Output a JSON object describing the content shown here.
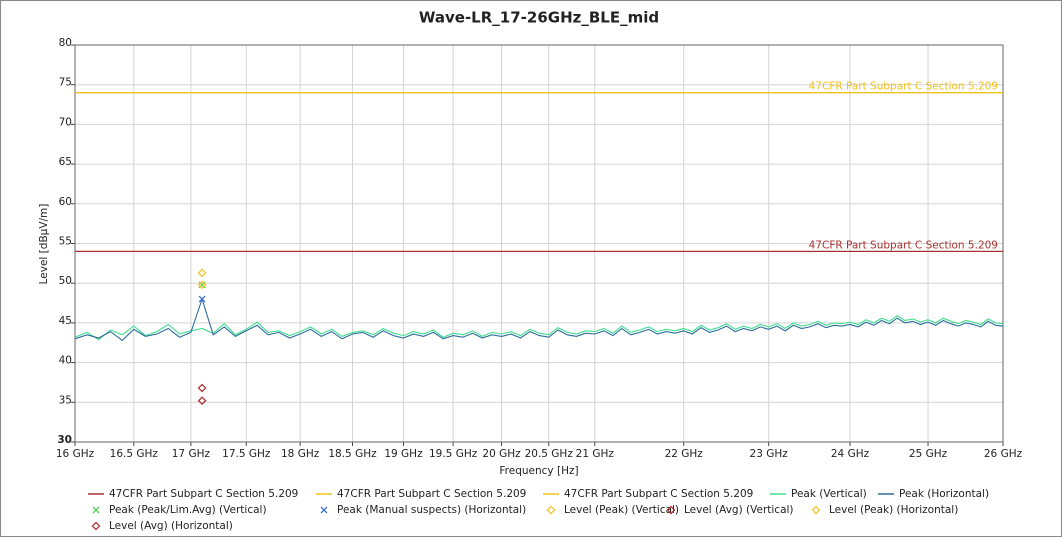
{
  "chart_data": {
    "type": "line",
    "title": "Wave-LR_17-26GHz_BLE_mid",
    "xlabel": "Frequency [Hz]",
    "ylabel": "Level [dBµV/m]",
    "xscale": "log",
    "xlim": [
      16,
      26
    ],
    "xticks": [
      {
        "value": 16,
        "label": "16 GHz"
      },
      {
        "value": 16.5,
        "label": "16.5 GHz"
      },
      {
        "value": 17,
        "label": "17 GHz"
      },
      {
        "value": 17.5,
        "label": "17.5 GHz"
      },
      {
        "value": 18,
        "label": "18 GHz"
      },
      {
        "value": 18.5,
        "label": "18.5 GHz"
      },
      {
        "value": 19,
        "label": "19 GHz"
      },
      {
        "value": 19.5,
        "label": "19.5 GHz"
      },
      {
        "value": 20,
        "label": "20 GHz"
      },
      {
        "value": 20.5,
        "label": "20.5 GHz"
      },
      {
        "value": 21,
        "label": "21 GHz"
      },
      {
        "value": 22,
        "label": "22 GHz"
      },
      {
        "value": 23,
        "label": "23 GHz"
      },
      {
        "value": 24,
        "label": "24 GHz"
      },
      {
        "value": 25,
        "label": "25 GHz"
      },
      {
        "value": 26,
        "label": "26 GHz"
      }
    ],
    "ylim": [
      30,
      80
    ],
    "yticks": [
      30,
      35,
      40,
      45,
      50,
      55,
      60,
      65,
      70,
      75,
      80
    ],
    "grid": true,
    "x": [
      16.0,
      16.1,
      16.2,
      16.3,
      16.4,
      16.5,
      16.6,
      16.7,
      16.8,
      16.9,
      17.0,
      17.1,
      17.2,
      17.3,
      17.4,
      17.5,
      17.6,
      17.7,
      17.8,
      17.9,
      18.0,
      18.1,
      18.2,
      18.3,
      18.4,
      18.5,
      18.6,
      18.7,
      18.8,
      18.9,
      19.0,
      19.1,
      19.2,
      19.3,
      19.4,
      19.5,
      19.6,
      19.7,
      19.8,
      19.9,
      20.0,
      20.1,
      20.2,
      20.3,
      20.4,
      20.5,
      20.6,
      20.7,
      20.8,
      20.9,
      21.0,
      21.1,
      21.2,
      21.3,
      21.4,
      21.5,
      21.6,
      21.7,
      21.8,
      21.9,
      22.0,
      22.1,
      22.2,
      22.3,
      22.4,
      22.5,
      22.6,
      22.7,
      22.8,
      22.9,
      23.0,
      23.1,
      23.2,
      23.3,
      23.4,
      23.5,
      23.6,
      23.7,
      23.8,
      23.9,
      24.0,
      24.1,
      24.2,
      24.3,
      24.4,
      24.5,
      24.6,
      24.7,
      24.8,
      24.9,
      25.0,
      25.1,
      25.2,
      25.3,
      25.4,
      25.5,
      25.6,
      25.7,
      25.8,
      25.9,
      26.0
    ],
    "series": [
      {
        "name": "47CFR Part Subpart C Section 5.209",
        "color": "#a83232",
        "x": [
          16,
          26
        ],
        "values": [
          54,
          54
        ],
        "line_label": true
      },
      {
        "name": "47CFR Part Subpart C Section 5.209",
        "color": "#f2c21b",
        "x": [
          16,
          26
        ],
        "values": [
          74,
          74
        ],
        "line_label": true
      },
      {
        "name": "47CFR Part Subpart C Section 5.209",
        "color": "#f2c21b",
        "x": [
          16,
          26
        ],
        "values": [
          74,
          74
        ]
      },
      {
        "name": "Peak (Vertical)",
        "color": "#3ee08f",
        "values": [
          43.2,
          43.8,
          42.9,
          44.1,
          43.5,
          44.6,
          43.4,
          43.9,
          44.8,
          43.6,
          44.0,
          44.3,
          43.7,
          44.9,
          43.5,
          44.2,
          45.1,
          43.8,
          44.0,
          43.4,
          43.9,
          44.5,
          43.6,
          44.2,
          43.3,
          43.8,
          44.0,
          43.5,
          44.3,
          43.7,
          43.4,
          43.9,
          43.6,
          44.1,
          43.2,
          43.7,
          43.5,
          44.0,
          43.3,
          43.8,
          43.6,
          43.9,
          43.4,
          44.2,
          43.7,
          43.5,
          44.4,
          43.8,
          43.6,
          44.0,
          43.9,
          44.3,
          43.7,
          44.6,
          43.8,
          44.1,
          44.5,
          43.9,
          44.2,
          44.0,
          44.3,
          43.9,
          44.7,
          44.1,
          44.4,
          44.9,
          44.2,
          44.6,
          44.3,
          44.8,
          44.5,
          44.9,
          44.3,
          45.0,
          44.6,
          44.8,
          45.2,
          44.7,
          45.0,
          44.9,
          45.1,
          44.8,
          45.4,
          45.0,
          45.6,
          45.2,
          45.9,
          45.3,
          45.5,
          45.1,
          45.4,
          45.0,
          45.6,
          45.2,
          44.9,
          45.3,
          45.1,
          44.8,
          45.5,
          45.0,
          44.9
        ]
      },
      {
        "name": "Peak (Horizontal)",
        "color": "#2f6d9c",
        "values": [
          43.0,
          43.5,
          43.1,
          43.9,
          42.8,
          44.2,
          43.3,
          43.6,
          44.3,
          43.2,
          43.8,
          48.0,
          43.5,
          44.5,
          43.3,
          44.0,
          44.7,
          43.5,
          43.8,
          43.1,
          43.6,
          44.2,
          43.3,
          43.9,
          43.0,
          43.6,
          43.8,
          43.2,
          44.0,
          43.4,
          43.1,
          43.6,
          43.3,
          43.8,
          43.0,
          43.4,
          43.2,
          43.7,
          43.1,
          43.5,
          43.3,
          43.6,
          43.1,
          43.9,
          43.4,
          43.2,
          44.1,
          43.5,
          43.3,
          43.7,
          43.6,
          44.0,
          43.4,
          44.3,
          43.5,
          43.8,
          44.2,
          43.6,
          43.9,
          43.7,
          44.0,
          43.6,
          44.4,
          43.8,
          44.1,
          44.6,
          43.9,
          44.3,
          44.0,
          44.5,
          44.2,
          44.6,
          44.0,
          44.7,
          44.3,
          44.5,
          44.9,
          44.4,
          44.7,
          44.6,
          44.8,
          44.5,
          45.1,
          44.7,
          45.3,
          44.9,
          45.6,
          45.0,
          45.2,
          44.8,
          45.1,
          44.7,
          45.3,
          44.9,
          44.6,
          45.0,
          44.8,
          44.5,
          45.2,
          44.7,
          44.6
        ]
      },
      {
        "name": "Peak (Peak/Lim.Avg) (Vertical)",
        "color": "#4ed34e",
        "marker": "x",
        "x": [
          17.1
        ],
        "values": [
          49.8
        ]
      },
      {
        "name": "Peak (Manual suspects) (Horizontal)",
        "color": "#3a6fd8",
        "marker": "x",
        "x": [
          17.1
        ],
        "values": [
          48.0
        ]
      },
      {
        "name": "Level (Peak) (Vertical)",
        "color": "#f2c21b",
        "marker": "diamond",
        "x": [
          17.1
        ],
        "values": [
          49.8
        ]
      },
      {
        "name": "Level (Avg) (Vertical)",
        "color": "#b22222",
        "marker": "diamond",
        "x": [
          17.1
        ],
        "values": [
          36.8
        ]
      },
      {
        "name": "Level (Peak) (Horizontal)",
        "color": "#f2c21b",
        "marker": "diamond",
        "x": [
          17.1
        ],
        "values": [
          51.3
        ]
      },
      {
        "name": "Level (Avg) (Horizontal)",
        "color": "#b22222",
        "marker": "diamond",
        "x": [
          17.1
        ],
        "values": [
          35.2
        ]
      }
    ]
  }
}
